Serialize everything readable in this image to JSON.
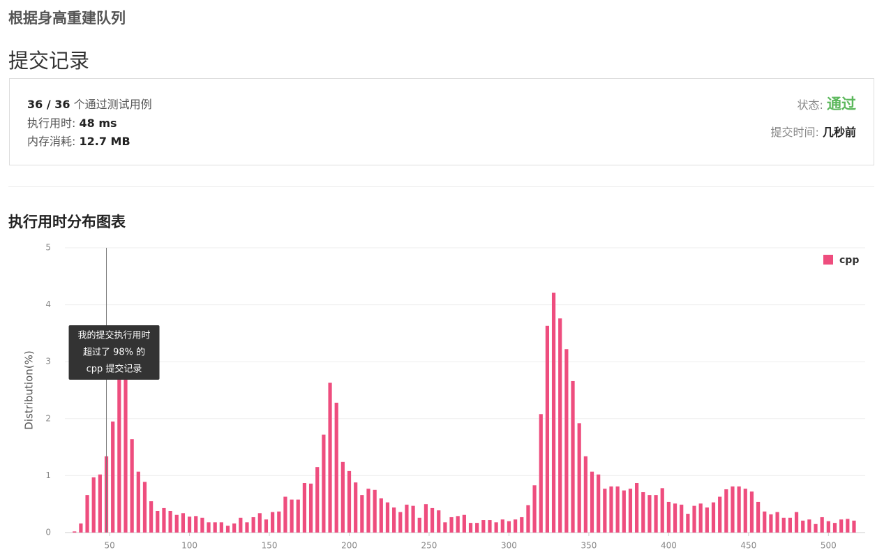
{
  "header": {
    "problem_title": "根据身高重建队列",
    "page_title": "提交记录"
  },
  "summary": {
    "passed": "36 / 36",
    "passed_label": "个通过测试用例",
    "runtime_label": "执行用时:",
    "runtime": "48 ms",
    "memory_label": "内存消耗:",
    "memory": "12.7 MB",
    "status_label": "状态:",
    "status": "通过",
    "time_label": "提交时间:",
    "time": "几秒前"
  },
  "chart_data": {
    "type": "bar",
    "title": "执行用时分布图表",
    "y_label": "Distribution(%)",
    "x": [
      28,
      32,
      36,
      40,
      44,
      48,
      52,
      56,
      60,
      64,
      68,
      72,
      76,
      80,
      84,
      88,
      92,
      96,
      100,
      104,
      108,
      112,
      116,
      120,
      124,
      128,
      132,
      136,
      140,
      144,
      148,
      152,
      156,
      160,
      164,
      168,
      172,
      176,
      180,
      184,
      188,
      192,
      196,
      200,
      204,
      208,
      212,
      216,
      220,
      224,
      228,
      232,
      236,
      240,
      244,
      248,
      252,
      256,
      260,
      264,
      268,
      272,
      276,
      280,
      284,
      288,
      292,
      296,
      300,
      304,
      308,
      312,
      316,
      320,
      324,
      328,
      332,
      336,
      340,
      344,
      348,
      352,
      356,
      360,
      364,
      368,
      372,
      376,
      380,
      384,
      388,
      392,
      396,
      400,
      404,
      408,
      412,
      416,
      420,
      424,
      428,
      432,
      436,
      440,
      444,
      448,
      452,
      456,
      460,
      464,
      468,
      472,
      476,
      480,
      484,
      488,
      492,
      496,
      500,
      504,
      508,
      512,
      516
    ],
    "series": [
      {
        "name": "cpp",
        "color": "#ee4d7e",
        "values": [
          0.02,
          0.16,
          0.66,
          0.97,
          1.02,
          1.34,
          1.95,
          2.75,
          2.95,
          1.64,
          1.07,
          0.89,
          0.55,
          0.38,
          0.43,
          0.38,
          0.31,
          0.34,
          0.28,
          0.29,
          0.26,
          0.18,
          0.18,
          0.18,
          0.12,
          0.16,
          0.26,
          0.18,
          0.27,
          0.34,
          0.23,
          0.36,
          0.37,
          0.63,
          0.58,
          0.58,
          0.87,
          0.86,
          1.15,
          1.72,
          2.63,
          2.28,
          1.24,
          1.08,
          0.88,
          0.66,
          0.77,
          0.75,
          0.6,
          0.53,
          0.44,
          0.36,
          0.49,
          0.47,
          0.26,
          0.5,
          0.43,
          0.39,
          0.18,
          0.27,
          0.29,
          0.31,
          0.17,
          0.17,
          0.22,
          0.22,
          0.18,
          0.23,
          0.2,
          0.23,
          0.27,
          0.48,
          0.83,
          2.08,
          3.63,
          4.21,
          3.76,
          3.22,
          2.66,
          1.92,
          1.34,
          1.07,
          1.02,
          0.77,
          0.81,
          0.81,
          0.74,
          0.77,
          0.87,
          0.71,
          0.66,
          0.66,
          0.78,
          0.54,
          0.51,
          0.49,
          0.33,
          0.47,
          0.51,
          0.44,
          0.53,
          0.63,
          0.76,
          0.81,
          0.81,
          0.77,
          0.72,
          0.54,
          0.37,
          0.32,
          0.36,
          0.26,
          0.26,
          0.36,
          0.21,
          0.23,
          0.15,
          0.27,
          0.2,
          0.17,
          0.23,
          0.24,
          0.21
        ]
      }
    ],
    "xlim": [
      22,
      523
    ],
    "xticks": [
      50,
      100,
      150,
      200,
      250,
      300,
      350,
      400,
      450,
      500
    ],
    "ylim": [
      0,
      5
    ],
    "yticks": [
      0,
      1,
      2,
      3,
      4,
      5
    ],
    "grid": true,
    "legend": "top-right",
    "marker": {
      "x": 48,
      "lines": [
        "我的提交执行用时",
        "超过了 98% 的",
        "cpp 提交记录"
      ]
    }
  }
}
